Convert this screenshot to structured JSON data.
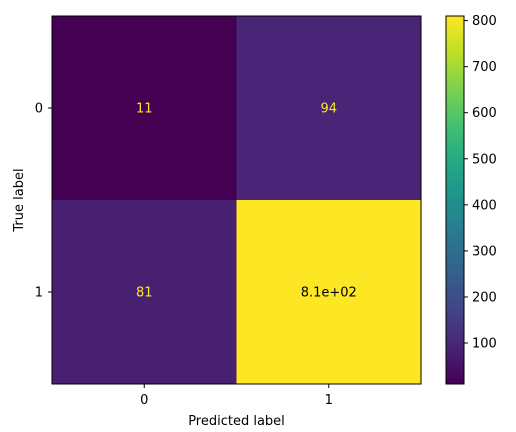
{
  "chart_data": {
    "type": "heatmap",
    "title": "",
    "xlabel": "Predicted label",
    "ylabel": "True label",
    "x_categories": [
      "0",
      "1"
    ],
    "y_categories": [
      "0",
      "1"
    ],
    "values": [
      [
        11,
        94
      ],
      [
        81,
        810
      ]
    ],
    "cell_labels": [
      [
        "11",
        "94"
      ],
      [
        "81",
        "8.1e+02"
      ]
    ],
    "colormap": "viridis",
    "colorbar": {
      "range": [
        11,
        810
      ],
      "ticks": [
        100,
        200,
        300,
        400,
        500,
        600,
        700,
        800
      ],
      "tick_labels": [
        "100",
        "200",
        "300",
        "400",
        "500",
        "600",
        "700",
        "800"
      ]
    },
    "colors": {
      "viridis_low": "#440154",
      "viridis_high": "#fde725",
      "label_on_dark": "#fde725",
      "label_on_light": "#000000"
    }
  }
}
